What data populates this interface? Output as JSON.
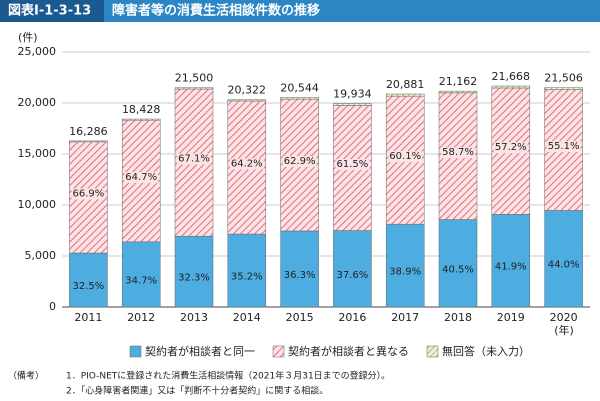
{
  "header": {
    "figure_no": "図表Ⅰ-1-3-13",
    "title": "障害者等の消費生活相談件数の推移"
  },
  "chart_data": {
    "type": "stacked-bar",
    "y_unit": "(件)",
    "x_unit": "(年)",
    "categories": [
      "2011",
      "2012",
      "2013",
      "2014",
      "2015",
      "2016",
      "2017",
      "2018",
      "2019",
      "2020"
    ],
    "series": [
      {
        "name": "契約者が相談者と同一",
        "color": "#4dade0",
        "pattern": "solid",
        "values": [
          5293,
          6395,
          6945,
          7153,
          7457,
          7495,
          8123,
          8571,
          9079,
          9463
        ],
        "share_labels": [
          "32.5%",
          "34.7%",
          "32.3%",
          "35.2%",
          "36.3%",
          "37.6%",
          "38.9%",
          "40.5%",
          "41.9%",
          "44.0%"
        ]
      },
      {
        "name": "契約者が相談者と異なる",
        "color": "#e0505e",
        "pattern": "hatch",
        "values": [
          10895,
          11923,
          14427,
          13047,
          12922,
          12259,
          12549,
          12422,
          12394,
          11850
        ],
        "share_labels": [
          "66.9%",
          "64.7%",
          "67.1%",
          "64.2%",
          "62.9%",
          "61.5%",
          "60.1%",
          "58.7%",
          "57.2%",
          "55.1%"
        ]
      },
      {
        "name": "無回答（未入力）",
        "color": "#7cb342",
        "pattern": "hatch",
        "values": [
          98,
          110,
          128,
          122,
          165,
          180,
          209,
          169,
          195,
          193
        ]
      }
    ],
    "totals": [
      16286,
      18428,
      21500,
      20322,
      20544,
      19934,
      20881,
      21162,
      21668,
      21506
    ],
    "total_labels": [
      "16,286",
      "18,428",
      "21,500",
      "20,322",
      "20,544",
      "19,934",
      "20,881",
      "21,162",
      "21,668",
      "21,506"
    ],
    "ylim": [
      0,
      25000
    ],
    "yticks": [
      0,
      {
        "value": 5000,
        "label": "5,000"
      },
      {
        "value": 10000,
        "label": "10,000"
      },
      {
        "value": 15000,
        "label": "15,000"
      },
      {
        "value": 20000,
        "label": "20,000"
      },
      {
        "value": 25000,
        "label": "25,000"
      }
    ],
    "grid": true
  },
  "notes": {
    "label": "（備考）",
    "items": [
      "1．PIO-NETに登録された消費生活相談情報（2021年３月31日までの登録分）。",
      "2．「心身障害者関連」又は「判断不十分者契約」に関する相談。"
    ]
  }
}
